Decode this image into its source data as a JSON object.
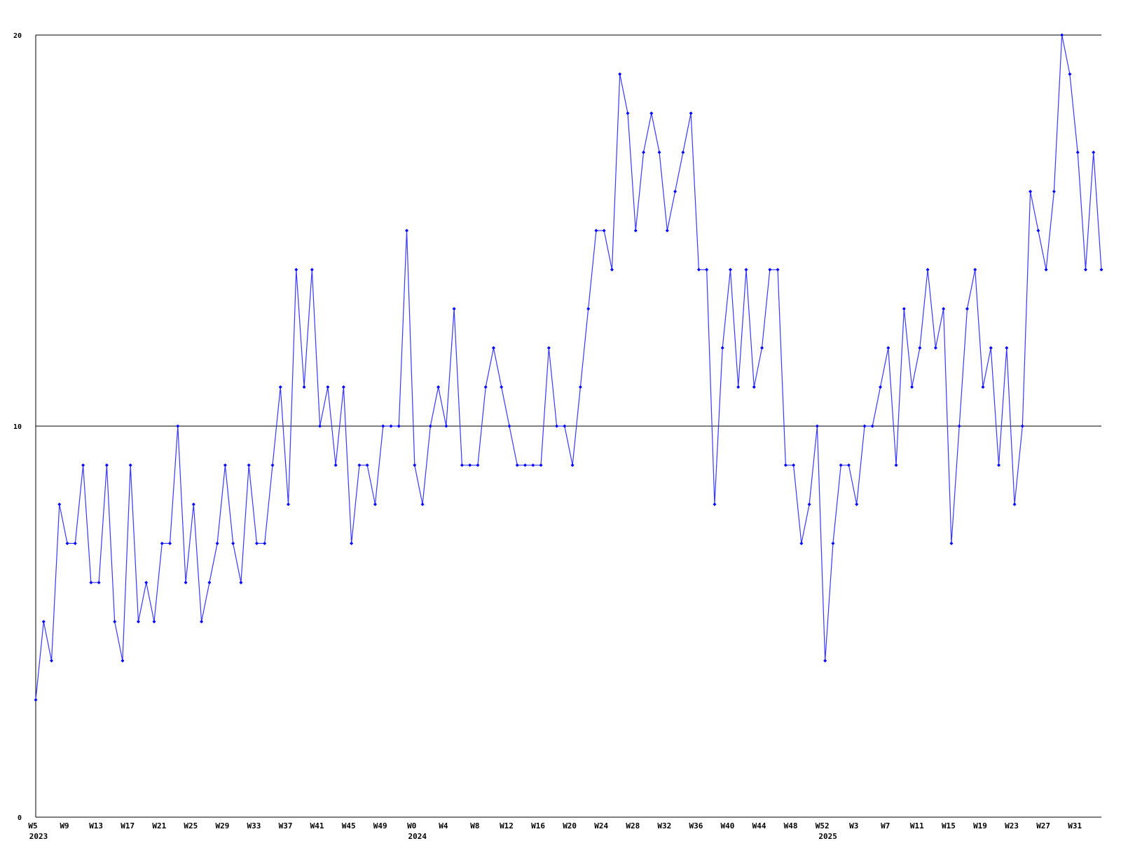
{
  "chart_data": {
    "type": "line",
    "categories": [
      "W5",
      null,
      null,
      null,
      "W9",
      null,
      null,
      null,
      "W13",
      null,
      null,
      null,
      "W17",
      null,
      null,
      null,
      "W21",
      null,
      null,
      null,
      "W25",
      null,
      null,
      null,
      "W29",
      null,
      null,
      null,
      "W33",
      null,
      null,
      null,
      "W37",
      null,
      null,
      null,
      "W41",
      null,
      null,
      null,
      "W45",
      null,
      null,
      null,
      "W49",
      null,
      null,
      null,
      "W0",
      null,
      null,
      null,
      "W4",
      null,
      null,
      null,
      "W8",
      null,
      null,
      null,
      "W12",
      null,
      null,
      null,
      "W16",
      null,
      null,
      null,
      "W20",
      null,
      null,
      null,
      "W24",
      null,
      null,
      null,
      "W28",
      null,
      null,
      null,
      "W32",
      null,
      null,
      null,
      "W36",
      null,
      null,
      null,
      "W40",
      null,
      null,
      null,
      "W44",
      null,
      null,
      null,
      "W48",
      null,
      null,
      null,
      "W52",
      null,
      null,
      null,
      "W3",
      null,
      null,
      null,
      "W7",
      null,
      null,
      null,
      "W11",
      null,
      null,
      null,
      "W15",
      null,
      null,
      null,
      "W19",
      null,
      null,
      null,
      "W23",
      null,
      null,
      null,
      "W27",
      null,
      null,
      null,
      "W31",
      null,
      null,
      null
    ],
    "category_years": [
      "2023",
      null,
      null,
      null,
      null,
      null,
      null,
      null,
      null,
      null,
      null,
      null,
      null,
      null,
      null,
      null,
      null,
      null,
      null,
      null,
      null,
      null,
      null,
      null,
      null,
      null,
      null,
      null,
      null,
      null,
      null,
      null,
      null,
      null,
      null,
      null,
      null,
      null,
      null,
      null,
      null,
      null,
      null,
      null,
      null,
      null,
      null,
      null,
      "2024",
      null,
      null,
      null,
      null,
      null,
      null,
      null,
      null,
      null,
      null,
      null,
      null,
      null,
      null,
      null,
      null,
      null,
      null,
      null,
      null,
      null,
      null,
      null,
      null,
      null,
      null,
      null,
      null,
      null,
      null,
      null,
      null,
      null,
      null,
      null,
      null,
      null,
      null,
      null,
      null,
      null,
      null,
      null,
      null,
      null,
      null,
      null,
      null,
      null,
      null,
      null,
      "2025",
      null,
      null,
      null,
      null,
      null,
      null,
      null,
      null,
      null,
      null,
      null,
      null,
      null,
      null,
      null,
      null,
      null,
      null,
      null,
      null,
      null,
      null,
      null,
      null,
      null,
      null,
      null,
      null,
      null,
      null,
      null,
      null,
      null,
      null,
      null
    ],
    "series": [
      {
        "color": "#0000ff",
        "line_color": "#3838ff",
        "values": [
          3,
          5,
          4,
          8,
          7,
          7,
          9,
          6,
          6,
          9,
          5,
          4,
          9,
          5,
          6,
          5,
          7,
          7,
          10,
          6,
          8,
          5,
          6,
          7,
          9,
          7,
          6,
          9,
          7,
          7,
          9,
          11,
          8,
          14,
          11,
          14,
          10,
          11,
          9,
          11,
          7,
          9,
          9,
          8,
          10,
          10,
          10,
          15,
          9,
          8,
          10,
          11,
          10,
          13,
          9,
          9,
          9,
          11,
          12,
          11,
          10,
          9,
          9,
          9,
          9,
          12,
          10,
          10,
          9,
          11,
          13,
          15,
          15,
          14,
          19,
          18,
          15,
          17,
          18,
          17,
          15,
          16,
          17,
          18,
          14,
          14,
          8,
          12,
          14,
          11,
          14,
          11,
          12,
          14,
          14,
          9,
          9,
          7,
          8,
          10,
          4,
          7,
          9,
          9,
          8,
          10,
          10,
          11,
          12,
          9,
          13,
          11,
          12,
          14,
          12,
          13,
          7,
          10,
          13,
          14,
          11,
          12,
          9,
          12,
          8,
          10,
          16,
          15,
          14,
          16,
          20,
          19,
          17,
          14,
          17,
          14
        ]
      }
    ],
    "ylim": [
      0,
      20
    ],
    "yticks": [
      0,
      10,
      20
    ],
    "grid": true
  }
}
